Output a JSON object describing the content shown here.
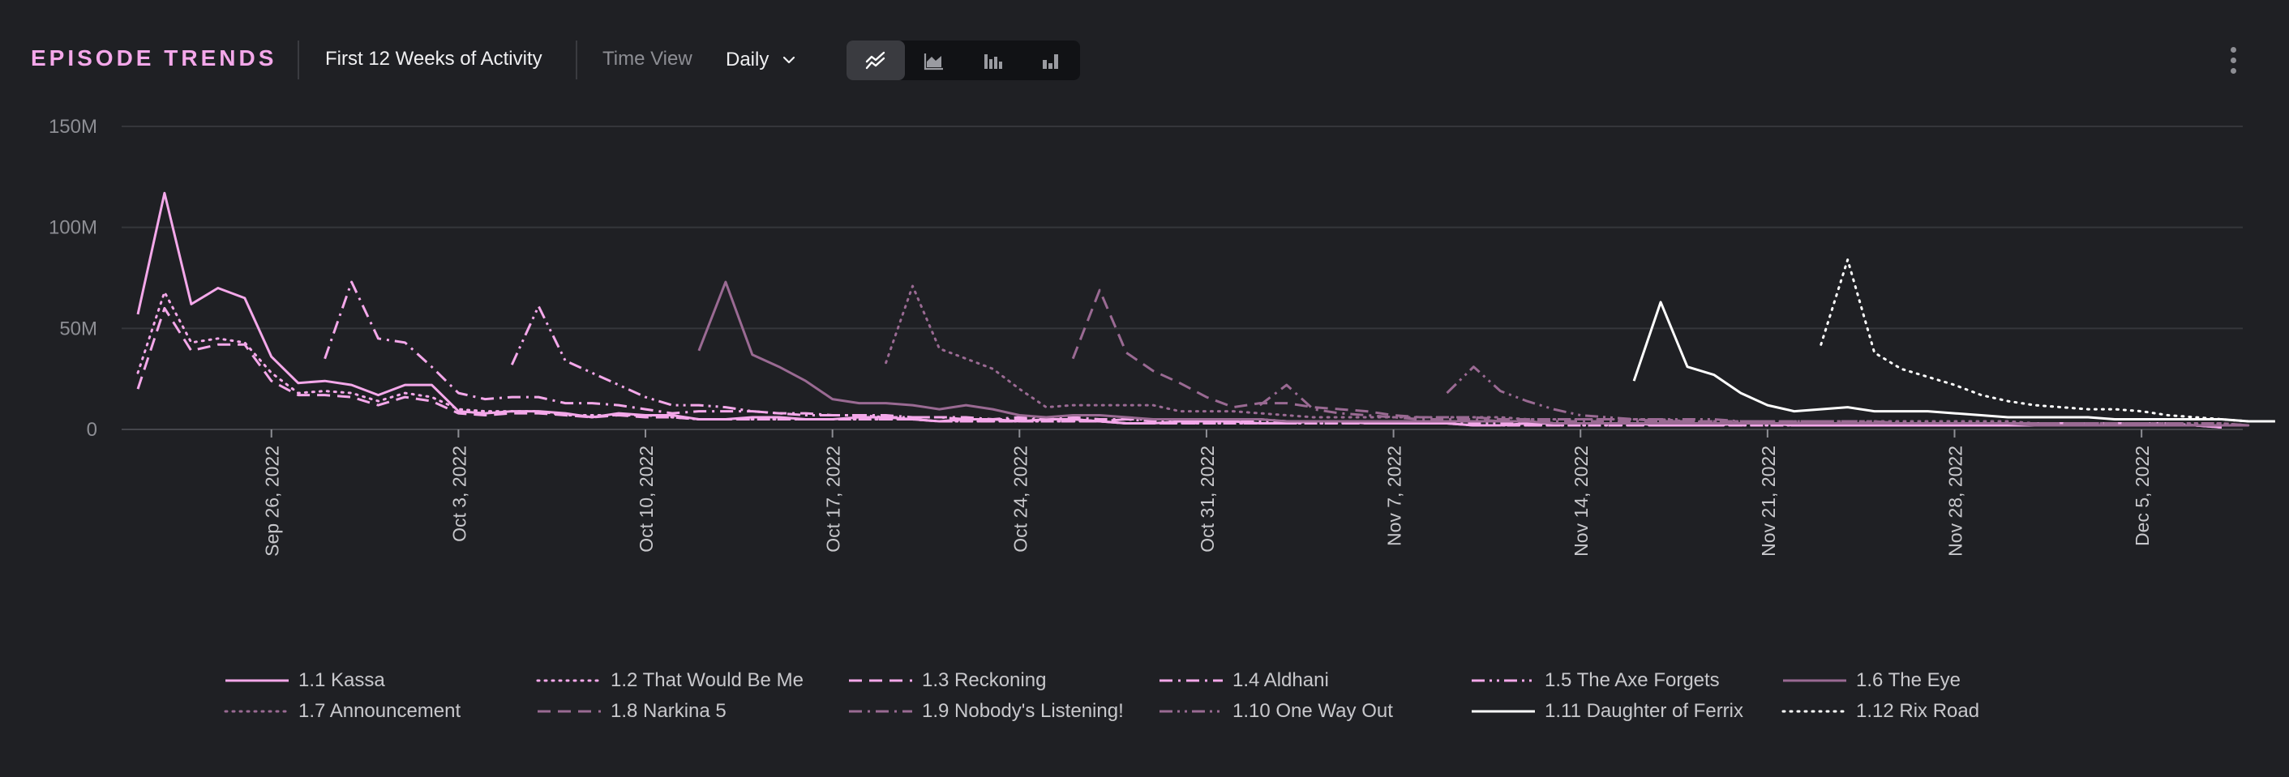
{
  "header": {
    "title": "EPISODE TRENDS",
    "subtitle": "First 12 Weeks of Activity",
    "time_view_label": "Time View",
    "time_view_value": "Daily",
    "chart_modes": [
      "line-chart-icon",
      "area-chart-icon",
      "grouped-bar-icon",
      "bar-chart-icon"
    ],
    "active_mode": "line-chart-icon",
    "menu": "more-vertical-icon"
  },
  "colors": {
    "background": "#1f2024",
    "accent": "#f4a8ea",
    "grid": "#3a3b40",
    "axis_text": "#8d8e94",
    "muted_series": "#9a6a93",
    "white_series": "#ffffff"
  },
  "chart_data": {
    "type": "line",
    "title": "",
    "xlabel": "",
    "ylabel": "",
    "ylim": [
      0,
      150000000
    ],
    "y_ticks": [
      {
        "value": 0,
        "label": "0"
      },
      {
        "value": 50000000,
        "label": "50M"
      },
      {
        "value": 100000000,
        "label": "100M"
      },
      {
        "value": 150000000,
        "label": "150M"
      }
    ],
    "x_range": [
      "2022-09-21",
      "2022-12-08"
    ],
    "x_ticks": [
      {
        "date": "2022-09-26",
        "label": "Sep 26, 2022"
      },
      {
        "date": "2022-10-03",
        "label": "Oct 3, 2022"
      },
      {
        "date": "2022-10-10",
        "label": "Oct 10, 2022"
      },
      {
        "date": "2022-10-17",
        "label": "Oct 17, 2022"
      },
      {
        "date": "2022-10-24",
        "label": "Oct 24, 2022"
      },
      {
        "date": "2022-10-31",
        "label": "Oct 31, 2022"
      },
      {
        "date": "2022-11-07",
        "label": "Nov 7, 2022"
      },
      {
        "date": "2022-11-14",
        "label": "Nov 14, 2022"
      },
      {
        "date": "2022-11-21",
        "label": "Nov 21, 2022"
      },
      {
        "date": "2022-11-28",
        "label": "Nov 28, 2022"
      },
      {
        "date": "2022-12-05",
        "label": "Dec 5, 2022"
      }
    ],
    "grid": true,
    "legend_position": "bottom",
    "series": [
      {
        "name": "1.1 Kassa",
        "color": "#f4a8ea",
        "dash": "solid",
        "start": "2022-09-21",
        "values": [
          57,
          117,
          62,
          70,
          65,
          36,
          23,
          24,
          22,
          17,
          22,
          22,
          9,
          8,
          9,
          9,
          8,
          6,
          8,
          7,
          7,
          5,
          5,
          6,
          6,
          5,
          5,
          6,
          6,
          5,
          4,
          5,
          5,
          4,
          5,
          5,
          4,
          3,
          3,
          4,
          4,
          4,
          3,
          3,
          4,
          4,
          3,
          3,
          3,
          3,
          2,
          2,
          3,
          3,
          3,
          3,
          3,
          2,
          2,
          2,
          3,
          3,
          2,
          2,
          2,
          2,
          2,
          2,
          2,
          2,
          2,
          2,
          2,
          2,
          2,
          2,
          2,
          2,
          1
        ]
      },
      {
        "name": "1.2 That Would Be Me",
        "color": "#f4a8ea",
        "dash": "dotted",
        "start": "2022-09-21",
        "values": [
          28,
          68,
          43,
          45,
          43,
          28,
          18,
          19,
          18,
          14,
          18,
          16,
          10,
          9,
          9,
          9,
          7,
          7,
          7,
          7,
          6,
          5,
          5,
          5,
          5,
          5,
          5,
          5,
          5,
          5,
          4,
          4,
          4,
          4,
          4,
          4,
          4,
          3,
          3,
          3,
          3,
          3,
          3,
          3,
          3,
          3,
          3,
          3,
          3,
          3,
          2,
          2,
          2,
          2,
          2,
          2,
          2,
          2,
          2,
          2,
          2,
          2,
          2,
          2,
          2,
          2,
          2,
          2,
          2,
          2,
          2,
          2,
          2,
          2,
          2,
          2,
          2,
          2,
          1
        ]
      },
      {
        "name": "1.3 Reckoning",
        "color": "#f4a8ea",
        "dash": "dashed",
        "start": "2022-09-21",
        "values": [
          20,
          60,
          39,
          42,
          42,
          24,
          17,
          17,
          16,
          12,
          16,
          14,
          8,
          7,
          8,
          8,
          7,
          6,
          7,
          6,
          6,
          5,
          5,
          5,
          5,
          5,
          5,
          5,
          5,
          5,
          4,
          4,
          4,
          4,
          4,
          4,
          4,
          3,
          3,
          3,
          3,
          3,
          3,
          3,
          3,
          3,
          3,
          3,
          3,
          3,
          2,
          2,
          2,
          2,
          2,
          2,
          2,
          2,
          2,
          2,
          2,
          2,
          2,
          2,
          2,
          2,
          2,
          2,
          2,
          2,
          2,
          2,
          2,
          2,
          2,
          2,
          2,
          2,
          1
        ]
      },
      {
        "name": "1.4 Aldhani",
        "color": "#f4a8ea",
        "dash": "dashdot",
        "start": "2022-09-28",
        "values": [
          35,
          73,
          45,
          43,
          31,
          18,
          15,
          16,
          16,
          13,
          13,
          12,
          10,
          8,
          9,
          9,
          9,
          8,
          8,
          7,
          7,
          7,
          6,
          6,
          6,
          5,
          6,
          6,
          6,
          5,
          5,
          5,
          5,
          5,
          5,
          5,
          4,
          4,
          4,
          4,
          4,
          4,
          4,
          4,
          4,
          4,
          3,
          3,
          3,
          3,
          3,
          3,
          3,
          3,
          3,
          3,
          3,
          3,
          3,
          3,
          3,
          3,
          3,
          3,
          3,
          3,
          3,
          3,
          3,
          3,
          2,
          2
        ]
      },
      {
        "name": "1.5 The Axe Forgets",
        "color": "#f4a8ea",
        "dash": "dashdotdot",
        "start": "2022-10-05",
        "values": [
          32,
          61,
          34,
          28,
          22,
          16,
          12,
          12,
          11,
          9,
          8,
          7,
          7,
          7,
          6,
          6,
          6,
          5,
          5,
          5,
          5,
          5,
          4,
          5,
          4,
          4,
          4,
          4,
          4,
          4,
          4,
          4,
          4,
          3,
          3,
          3,
          3,
          3,
          3,
          3,
          3,
          3,
          3,
          3,
          3,
          3,
          3,
          3,
          3,
          3,
          3,
          3,
          3,
          3,
          3,
          3,
          2,
          2,
          2,
          2,
          2,
          2,
          2,
          2,
          2
        ]
      },
      {
        "name": "1.6 The Eye",
        "color": "#9a6a93",
        "dash": "solid",
        "start": "2022-10-12",
        "values": [
          39,
          73,
          37,
          31,
          24,
          15,
          13,
          13,
          12,
          10,
          12,
          10,
          7,
          6,
          7,
          7,
          6,
          5,
          5,
          5,
          5,
          5,
          4,
          4,
          4,
          4,
          4,
          4,
          4,
          4,
          4,
          4,
          3,
          3,
          3,
          3,
          3,
          3,
          3,
          3,
          3,
          3,
          3,
          3,
          3,
          3,
          3,
          3,
          3,
          3,
          2,
          2,
          2,
          2,
          2,
          2,
          2,
          2,
          2
        ]
      },
      {
        "name": "1.7 Announcement",
        "color": "#9a6a93",
        "dash": "dotted",
        "start": "2022-10-19",
        "values": [
          33,
          71,
          40,
          35,
          30,
          20,
          11,
          12,
          12,
          12,
          12,
          9,
          9,
          9,
          8,
          7,
          6,
          6,
          6,
          6,
          6,
          6,
          6,
          6,
          5,
          5,
          5,
          5,
          5,
          5,
          4,
          4,
          4,
          4,
          4,
          4,
          4,
          4,
          4,
          4,
          4,
          4,
          4,
          3,
          3,
          3,
          3,
          3,
          3,
          3,
          3,
          2
        ]
      },
      {
        "name": "1.8 Narkina 5",
        "color": "#9a6a93",
        "dash": "dashed",
        "start": "2022-10-26",
        "values": [
          35,
          69,
          38,
          29,
          23,
          16,
          11,
          13,
          13,
          11,
          10,
          9,
          7,
          6,
          6,
          6,
          5,
          5,
          5,
          5,
          5,
          5,
          4,
          4,
          4,
          4,
          4,
          4,
          4,
          4,
          3,
          3,
          3,
          3,
          3,
          3,
          3,
          3,
          3,
          3,
          3,
          2,
          2,
          2,
          2
        ]
      },
      {
        "name": "1.9 Nobody's Listening!",
        "color": "#9a6a93",
        "dash": "dashdot",
        "start": "2022-11-02",
        "values": [
          12,
          22,
          10,
          8,
          7,
          6,
          5,
          5,
          5,
          4,
          4,
          4,
          4,
          4,
          4,
          4,
          4,
          3,
          3,
          3,
          3,
          3,
          3,
          3,
          3,
          3,
          3,
          3,
          3,
          3,
          2,
          2,
          2,
          2,
          2,
          2,
          2,
          2
        ]
      },
      {
        "name": "1.10 One Way Out",
        "color": "#9a6a93",
        "dash": "dashdotdot",
        "start": "2022-11-09",
        "values": [
          18,
          31,
          19,
          14,
          10,
          7,
          6,
          5,
          5,
          5,
          5,
          4,
          4,
          4,
          4,
          4,
          4,
          3,
          3,
          3,
          3,
          3,
          3,
          3,
          3,
          3,
          3,
          3,
          3,
          3,
          2
        ]
      },
      {
        "name": "1.11 Daughter of Ferrix",
        "color": "#ffffff",
        "dash": "solid",
        "start": "2022-11-16",
        "values": [
          24,
          63,
          31,
          27,
          18,
          12,
          9,
          10,
          11,
          9,
          9,
          9,
          8,
          7,
          6,
          6,
          6,
          6,
          5,
          5,
          5,
          5,
          5,
          4,
          4
        ]
      },
      {
        "name": "1.12 Rix Road",
        "color": "#ffffff",
        "dash": "dotted",
        "start": "2022-11-23",
        "values": [
          42,
          84,
          38,
          30,
          26,
          22,
          17,
          14,
          12,
          11,
          10,
          10,
          9,
          7,
          6,
          5,
          4,
          4
        ]
      }
    ]
  }
}
